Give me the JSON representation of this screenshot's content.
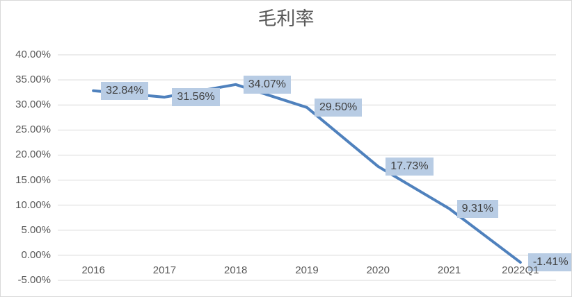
{
  "chart_data": {
    "type": "line",
    "title": "毛利率",
    "categories": [
      "2016",
      "2017",
      "2018",
      "2019",
      "2020",
      "2021",
      "2022Q1"
    ],
    "series": [
      {
        "name": "毛利率",
        "values": [
          32.84,
          31.56,
          34.07,
          29.5,
          17.73,
          9.31,
          -1.41
        ]
      }
    ],
    "data_labels": [
      "32.84%",
      "31.56%",
      "34.07%",
      "29.50%",
      "17.73%",
      "9.31%",
      "-1.41%"
    ],
    "xlabel": "",
    "ylabel": "",
    "y_axis": {
      "min": -5,
      "max": 40,
      "step": 5,
      "tick_labels": [
        "40.00%",
        "35.00%",
        "30.00%",
        "25.00%",
        "20.00%",
        "15.00%",
        "10.00%",
        "5.00%",
        "0.00%",
        "-5.00%"
      ]
    },
    "grid": true,
    "legend_position": "none",
    "colors": {
      "line": "#4f81bd",
      "label_fill": "#b8cce4",
      "label_text": "#3f3f3f",
      "axis_text": "#595959",
      "title_text": "#595959",
      "gridline": "#d9d9d9",
      "background": "#ffffff",
      "border": "#d9d9d9"
    }
  }
}
